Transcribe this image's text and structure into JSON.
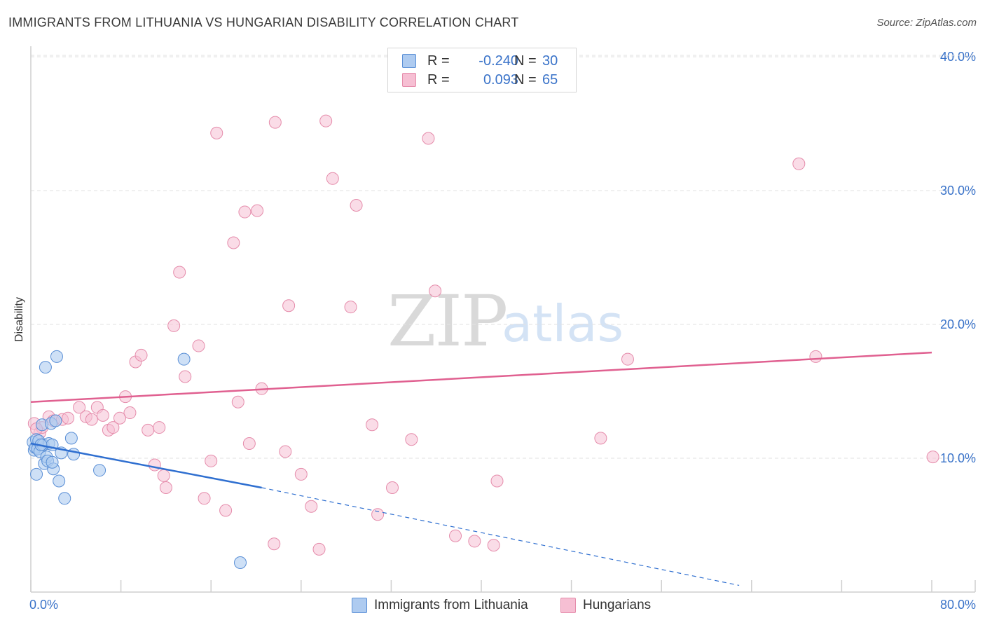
{
  "title": "IMMIGRANTS FROM LITHUANIA VS HUNGARIAN DISABILITY CORRELATION CHART",
  "source": "Source: ZipAtlas.com",
  "watermark": {
    "zip": "ZIP",
    "atlas": "atlas"
  },
  "colors": {
    "blue_fill": "#aecbf0",
    "blue_stroke": "#5a8fd6",
    "blue_line": "#2f6fd0",
    "pink_fill": "#f6bfd3",
    "pink_stroke": "#e58cab",
    "pink_line": "#e06090",
    "tick_text": "#3a73c9",
    "grid": "#e2e2e2"
  },
  "stats": {
    "blue": {
      "r_label": "R =",
      "r_value": "-0.240",
      "n_label": "N =",
      "n_value": "30"
    },
    "pink": {
      "r_label": "R =",
      "r_value": "0.093",
      "n_label": "N =",
      "n_value": "65"
    }
  },
  "legend": {
    "blue": "Immigrants from Lithuania",
    "pink": "Hungarians"
  },
  "chart_data": {
    "type": "scatter",
    "title": "IMMIGRANTS FROM LITHUANIA VS HUNGARIAN DISABILITY CORRELATION CHART",
    "xlabel": "",
    "ylabel": "Disability",
    "xlim": [
      0,
      80
    ],
    "ylim": [
      0,
      41.5
    ],
    "x_tick_labels": [
      "0.0%",
      "80.0%"
    ],
    "y_ticks": [
      10,
      20,
      30,
      40
    ],
    "y_tick_labels": [
      "10.0%",
      "20.0%",
      "30.0%",
      "40.0%"
    ],
    "grid": true,
    "series": [
      {
        "name": "Immigrants from Lithuania",
        "color": "blue",
        "trend": {
          "x0": 0,
          "y0": 11.1,
          "x1": 20.5,
          "y1": 7.8,
          "dash_to_x": 62.9,
          "dash_to_y": 0.5
        },
        "points": [
          [
            0.2,
            11.2
          ],
          [
            0.3,
            10.6
          ],
          [
            0.4,
            10.8
          ],
          [
            0.5,
            11.4
          ],
          [
            0.6,
            10.7
          ],
          [
            0.7,
            11.3
          ],
          [
            0.8,
            10.5
          ],
          [
            1.0,
            12.5
          ],
          [
            1.1,
            11.0
          ],
          [
            1.2,
            9.6
          ],
          [
            1.4,
            10.1
          ],
          [
            1.5,
            9.8
          ],
          [
            1.6,
            11.1
          ],
          [
            1.8,
            12.6
          ],
          [
            1.9,
            11.0
          ],
          [
            2.0,
            9.2
          ],
          [
            2.2,
            12.8
          ],
          [
            2.5,
            8.3
          ],
          [
            2.7,
            10.4
          ],
          [
            3.0,
            7.0
          ],
          [
            0.5,
            8.8
          ],
          [
            1.3,
            16.8
          ],
          [
            2.3,
            17.6
          ],
          [
            3.6,
            11.5
          ],
          [
            3.8,
            10.3
          ],
          [
            6.1,
            9.1
          ],
          [
            13.6,
            17.4
          ],
          [
            18.6,
            2.2
          ],
          [
            1.9,
            9.7
          ],
          [
            0.9,
            11.0
          ]
        ]
      },
      {
        "name": "Hungarians",
        "color": "pink",
        "trend": {
          "x0": 0,
          "y0": 14.2,
          "x1": 80,
          "y1": 17.9
        },
        "points": [
          [
            0.3,
            12.6
          ],
          [
            0.8,
            11.9
          ],
          [
            1.0,
            12.3
          ],
          [
            1.6,
            13.1
          ],
          [
            2.0,
            12.8
          ],
          [
            2.8,
            12.9
          ],
          [
            3.3,
            13.0
          ],
          [
            4.3,
            13.8
          ],
          [
            4.9,
            13.1
          ],
          [
            5.4,
            12.9
          ],
          [
            5.9,
            13.8
          ],
          [
            6.4,
            13.2
          ],
          [
            6.9,
            12.1
          ],
          [
            7.3,
            12.3
          ],
          [
            7.9,
            13.0
          ],
          [
            8.4,
            14.6
          ],
          [
            8.8,
            13.4
          ],
          [
            9.3,
            17.2
          ],
          [
            9.8,
            17.7
          ],
          [
            10.4,
            12.1
          ],
          [
            11.0,
            9.5
          ],
          [
            11.4,
            12.3
          ],
          [
            11.8,
            8.7
          ],
          [
            12.0,
            7.8
          ],
          [
            12.7,
            19.9
          ],
          [
            13.2,
            23.9
          ],
          [
            13.7,
            16.1
          ],
          [
            14.9,
            18.4
          ],
          [
            15.4,
            7.0
          ],
          [
            16.0,
            9.8
          ],
          [
            16.5,
            34.3
          ],
          [
            17.3,
            6.1
          ],
          [
            18.0,
            26.1
          ],
          [
            18.4,
            14.2
          ],
          [
            19.0,
            28.4
          ],
          [
            19.4,
            11.1
          ],
          [
            20.1,
            28.5
          ],
          [
            20.5,
            15.2
          ],
          [
            21.6,
            3.6
          ],
          [
            21.7,
            35.1
          ],
          [
            22.9,
            21.4
          ],
          [
            22.6,
            10.5
          ],
          [
            24.0,
            8.8
          ],
          [
            24.9,
            6.4
          ],
          [
            25.6,
            3.2
          ],
          [
            26.2,
            35.2
          ],
          [
            26.8,
            30.9
          ],
          [
            28.4,
            21.3
          ],
          [
            28.9,
            28.9
          ],
          [
            30.3,
            12.5
          ],
          [
            30.8,
            5.8
          ],
          [
            32.1,
            7.8
          ],
          [
            33.8,
            11.4
          ],
          [
            35.3,
            33.9
          ],
          [
            35.9,
            22.5
          ],
          [
            37.7,
            4.2
          ],
          [
            39.4,
            3.8
          ],
          [
            41.1,
            3.5
          ],
          [
            41.4,
            8.3
          ],
          [
            50.6,
            11.5
          ],
          [
            53.0,
            17.4
          ],
          [
            68.2,
            32.0
          ],
          [
            69.7,
            17.6
          ],
          [
            80.1,
            10.1
          ],
          [
            0.5,
            12.2
          ]
        ]
      }
    ]
  }
}
